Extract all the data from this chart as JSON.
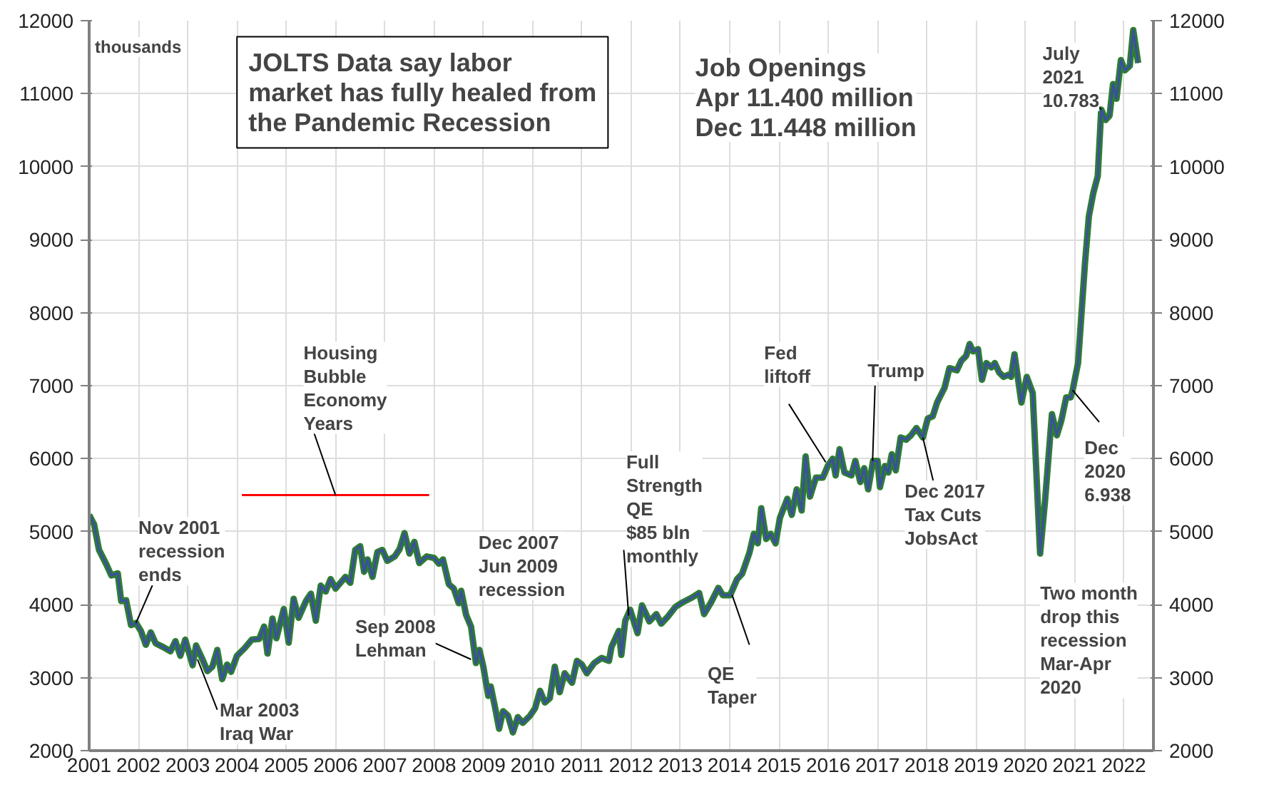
{
  "chart_data": {
    "type": "line",
    "title": "JOLTS Data say labor\nmarket has fully healed from\nthe Pandemic Recession",
    "subtitle": "Job Openings\nApr 11.400 million\nDec 11.448 million",
    "ylabel": "thousands",
    "xlim": [
      2001,
      2022.6
    ],
    "xticks": [
      2001,
      2002,
      2003,
      2004,
      2005,
      2006,
      2007,
      2008,
      2009,
      2010,
      2011,
      2012,
      2013,
      2014,
      2015,
      2016,
      2017,
      2018,
      2019,
      2020,
      2021,
      2022
    ],
    "ylim": [
      2000,
      12000
    ],
    "yticks": [
      2000,
      3000,
      4000,
      5000,
      6000,
      7000,
      8000,
      9000,
      10000,
      11000,
      12000
    ],
    "y2lim": [
      2000,
      12000
    ],
    "y2ticks": [
      2000,
      3000,
      4000,
      5000,
      6000,
      7000,
      8000,
      9000,
      10000,
      11000,
      12000
    ],
    "grid": true,
    "line_style": "solid",
    "series": [
      {
        "color": "#2e7d32",
        "x": [
          2001.0,
          2001.1,
          2001.2,
          2001.35,
          2001.45,
          2001.58,
          2001.65,
          2001.75,
          2001.85,
          2001.95,
          2002.05,
          2002.15,
          2002.25,
          2002.35,
          2002.5,
          2002.65,
          2002.75,
          2002.85,
          2002.95,
          2003.1,
          2003.17,
          2003.3,
          2003.4,
          2003.5,
          2003.6,
          2003.7,
          2003.8,
          2003.88,
          2004.0,
          2004.15,
          2004.3,
          2004.45,
          2004.55,
          2004.62,
          2004.72,
          2004.8,
          2004.95,
          2005.05,
          2005.15,
          2005.25,
          2005.4,
          2005.5,
          2005.6,
          2005.7,
          2005.8,
          2005.9,
          2006.0,
          2006.2,
          2006.3,
          2006.4,
          2006.5,
          2006.58,
          2006.65,
          2006.75,
          2006.85,
          2006.95,
          2007.05,
          2007.2,
          2007.3,
          2007.4,
          2007.5,
          2007.6,
          2007.7,
          2007.85,
          2008.0,
          2008.1,
          2008.18,
          2008.3,
          2008.4,
          2008.5,
          2008.55,
          2008.65,
          2008.75,
          2008.85,
          2008.92,
          2009.0,
          2009.1,
          2009.15,
          2009.25,
          2009.32,
          2009.4,
          2009.5,
          2009.6,
          2009.7,
          2009.8,
          2009.95,
          2010.05,
          2010.15,
          2010.25,
          2010.35,
          2010.45,
          2010.55,
          2010.65,
          2010.8,
          2010.9,
          2011.0,
          2011.1,
          2011.25,
          2011.4,
          2011.55,
          2011.6,
          2011.75,
          2011.8,
          2011.88,
          2011.98,
          2012.13,
          2012.22,
          2012.37,
          2012.51,
          2012.61,
          2012.75,
          2012.9,
          2013.04,
          2013.24,
          2013.38,
          2013.48,
          2013.62,
          2013.77,
          2013.86,
          2014.01,
          2014.15,
          2014.25,
          2014.4,
          2014.49,
          2014.57,
          2014.64,
          2014.74,
          2014.83,
          2014.93,
          2015.02,
          2015.17,
          2015.26,
          2015.36,
          2015.46,
          2015.54,
          2015.63,
          2015.75,
          2015.89,
          2015.99,
          2016.09,
          2016.15,
          2016.23,
          2016.33,
          2016.47,
          2016.55,
          2016.65,
          2016.73,
          2016.81,
          2016.91,
          2017.0,
          2017.05,
          2017.15,
          2017.22,
          2017.29,
          2017.37,
          2017.47,
          2017.58,
          2017.68,
          2017.79,
          2017.92,
          2018.02,
          2018.12,
          2018.21,
          2018.36,
          2018.46,
          2018.61,
          2018.7,
          2018.8,
          2018.87,
          2018.94,
          2019.04,
          2019.12,
          2019.21,
          2019.31,
          2019.38,
          2019.47,
          2019.56,
          2019.66,
          2019.71,
          2019.78,
          2019.92,
          2020.03,
          2020.15,
          2020.3,
          2020.4,
          2020.54,
          2020.64,
          2020.73,
          2020.83,
          2020.92,
          2020.96,
          2021.07,
          2021.21,
          2021.29,
          2021.38,
          2021.47,
          2021.54,
          2021.63,
          2021.71,
          2021.78,
          2021.85,
          2021.94,
          2022.02,
          2022.12,
          2022.19,
          2022.29
        ],
        "values": [
          5230,
          5100,
          4750,
          4550,
          4400,
          4430,
          4050,
          4060,
          3720,
          3750,
          3640,
          3450,
          3620,
          3470,
          3420,
          3360,
          3500,
          3300,
          3520,
          3170,
          3440,
          3250,
          3090,
          3150,
          3380,
          2980,
          3180,
          3080,
          3300,
          3400,
          3520,
          3530,
          3700,
          3330,
          3810,
          3540,
          3940,
          3480,
          4080,
          3820,
          4050,
          4150,
          3780,
          4260,
          4180,
          4350,
          4220,
          4380,
          4300,
          4750,
          4800,
          4450,
          4620,
          4380,
          4720,
          4750,
          4600,
          4660,
          4760,
          4980,
          4700,
          4860,
          4570,
          4660,
          4640,
          4560,
          4620,
          4280,
          4220,
          4020,
          4190,
          3860,
          3700,
          3200,
          3380,
          3150,
          2750,
          2880,
          2550,
          2300,
          2540,
          2480,
          2250,
          2460,
          2380,
          2480,
          2580,
          2820,
          2660,
          2720,
          3150,
          2800,
          3060,
          2930,
          3230,
          3180,
          3060,
          3200,
          3270,
          3230,
          3420,
          3640,
          3310,
          3780,
          3930,
          3610,
          3990,
          3770,
          3870,
          3740,
          3840,
          3970,
          4030,
          4100,
          4160,
          3870,
          4030,
          4230,
          4130,
          4130,
          4350,
          4420,
          4710,
          4970,
          4840,
          5320,
          4900,
          4970,
          4840,
          5190,
          5450,
          5230,
          5580,
          5290,
          6030,
          5480,
          5740,
          5740,
          5900,
          6000,
          5770,
          6130,
          5810,
          5770,
          5970,
          5680,
          5870,
          5580,
          5970,
          5970,
          5610,
          5900,
          5810,
          6060,
          5840,
          6290,
          6260,
          6320,
          6420,
          6290,
          6550,
          6580,
          6770,
          6970,
          7240,
          7210,
          7340,
          7410,
          7570,
          7470,
          7500,
          7080,
          7310,
          7250,
          7310,
          7180,
          7120,
          7150,
          7120,
          7430,
          6770,
          7120,
          6900,
          4700,
          5420,
          6610,
          6320,
          6520,
          6840,
          6840,
          6938,
          7310,
          8670,
          9320,
          9640,
          9870,
          10783,
          10640,
          10700,
          11130,
          10930,
          11460,
          11320,
          11380,
          11870,
          11420
        ]
      },
      {
        "color": "#ff0000",
        "x": [
          2004.1,
          2007.9
        ],
        "values": [
          5500,
          5500
        ]
      }
    ],
    "annotations": [
      {
        "text": "Nov 2001\nrecession\nends",
        "x": 2001.95,
        "y": 3750
      },
      {
        "text": "Mar 2003\nIraq War",
        "x": 2003.2,
        "y": 3250
      },
      {
        "text": "Housing\nBubble\nEconomy\nYears",
        "x": 2006.0,
        "y": 5500
      },
      {
        "text": "Sep 2008\nLehman",
        "x": 2008.75,
        "y": 3250
      },
      "Dec 2007\nJun 2009\nrecession",
      {
        "text": "Full\nStrength\nQE\n$85 bln\nmonthly",
        "x": 2011.95,
        "y": 3850
      },
      {
        "text": "QE\nTaper",
        "x": 2014.05,
        "y": 4130
      },
      {
        "text": "Fed\nliftoff",
        "x": 2015.95,
        "y": 5950
      },
      {
        "text": "Trump",
        "x": 2016.9,
        "y": 5970
      },
      {
        "text": "Dec 2017\nTax Cuts\nJobsAct",
        "x": 2017.92,
        "y": 6290
      },
      {
        "text": "Dec\n2020\n6.938",
        "x": 2020.96,
        "y": 6938
      },
      "Two month\ndrop this\nrecession\nMar-Apr\n2020",
      {
        "text": "July\n2021\n10.783",
        "x": 2021.54,
        "y": 10783
      }
    ]
  }
}
